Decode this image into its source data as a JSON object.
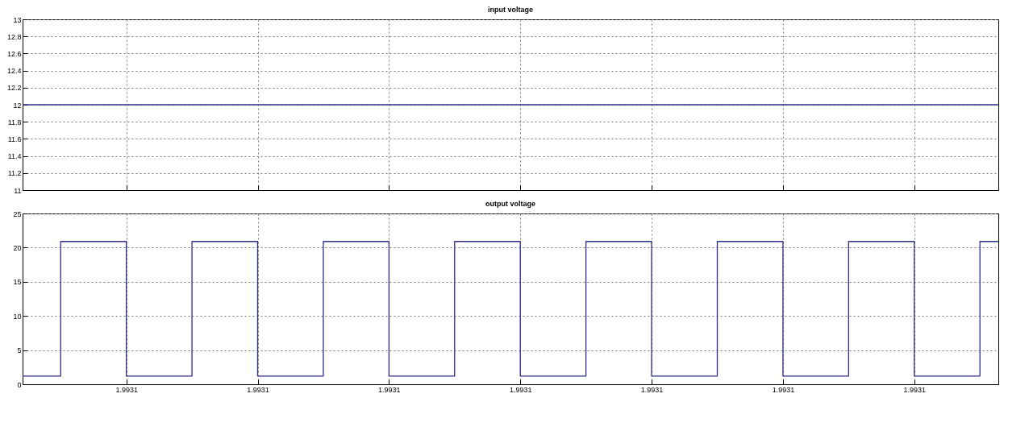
{
  "chart_data": [
    {
      "type": "line",
      "title": "input voltage",
      "x": [
        1.9930621,
        1.9931364
      ],
      "series": [
        {
          "color": "#2e2e8c",
          "values": [
            12,
            12
          ]
        }
      ],
      "xlim": [
        1.9930621,
        1.9931364
      ],
      "xticks": [
        1.99307,
        1.99308,
        1.99309,
        1.9931,
        1.99311,
        1.99312,
        1.99313
      ],
      "ylim": [
        11,
        13
      ],
      "yticks": [
        11,
        11.2,
        11.4,
        11.6,
        11.8,
        12,
        12.2,
        12.4,
        12.6,
        12.8,
        13
      ],
      "tick_labels": "y",
      "grid": true
    },
    {
      "type": "step",
      "title": "output voltage",
      "x": [
        1.9930621,
        1.993065,
        1.99307,
        1.993075,
        1.99308,
        1.993085,
        1.99309,
        1.993095,
        1.9931,
        1.993105,
        1.99311,
        1.993115,
        1.99312,
        1.993125,
        1.99313,
        1.993135,
        1.9931364
      ],
      "series": [
        {
          "color": "#2e2e8c",
          "values": [
            1.2,
            20.9,
            1.2,
            20.9,
            1.2,
            20.9,
            1.2,
            20.9,
            1.2,
            20.9,
            1.2,
            20.9,
            1.2,
            20.9,
            1.2,
            20.9,
            20.9
          ]
        }
      ],
      "xlim": [
        1.9930621,
        1.9931364
      ],
      "xticks": [
        {
          "value": 1.99307,
          "label": "1.9931"
        },
        {
          "value": 1.99308,
          "label": "1.9931"
        },
        {
          "value": 1.99309,
          "label": "1.9931"
        },
        {
          "value": 1.9931,
          "label": "1.9931"
        },
        {
          "value": 1.99311,
          "label": "1.9931"
        },
        {
          "value": 1.99312,
          "label": "1.9931"
        },
        {
          "value": 1.99313,
          "label": "1.9931"
        }
      ],
      "ylim": [
        0,
        25
      ],
      "yticks": [
        0,
        5,
        10,
        15,
        20,
        25
      ],
      "grid": true
    }
  ]
}
